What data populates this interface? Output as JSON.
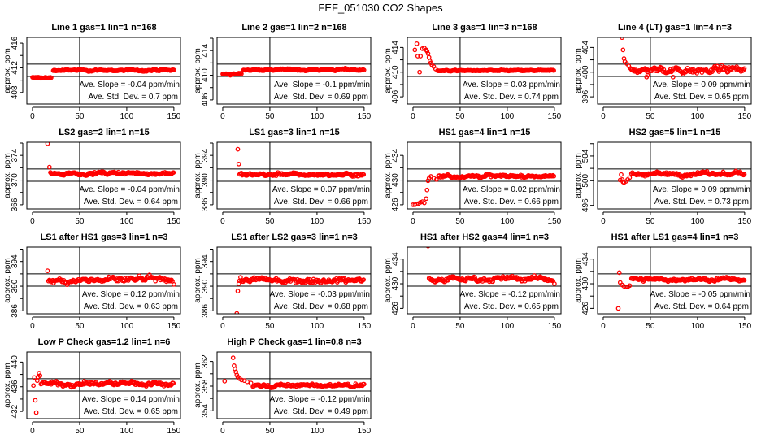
{
  "figure_title": "FEF_051030  CO2 Shapes",
  "colors": {
    "points": "#ff0000",
    "axes": "#000000"
  },
  "chart_data": {
    "type": "scatter",
    "ylabel": "approx. ppm",
    "xlim": [
      -6,
      157
    ],
    "x_ticks": [
      "0",
      "50",
      "100",
      "150"
    ],
    "vertical_reference_x": 50,
    "band_halfwidth_ppm": 1,
    "panels": [
      {
        "title": "Line 1 gas=1 lin=1 n=168",
        "slope": "Ave. Slope =  -0.04  ppm/min",
        "sd": "Ave. Std. Dev. =  0.7  ppm",
        "center": 411.6,
        "y_ticks": [
          408,
          410,
          412,
          414,
          416
        ],
        "y_labels": [
          "408",
          "412",
          "416"
        ],
        "transient": [],
        "steady": [
          {
            "from": 0,
            "to": 20,
            "level": 410.4,
            "noise": 0.12
          },
          {
            "from": 22,
            "to": 150,
            "level": 411.6,
            "noise": 0.12
          }
        ]
      },
      {
        "title": "Line 2 gas=1 lin=2 n=168",
        "slope": "Ave. Slope =  -0.1  ppm/min",
        "sd": "Ave. Std. Dev. =  0.69  ppm",
        "center": 410.8,
        "y_ticks": [
          406,
          408,
          410,
          412,
          414,
          416
        ],
        "y_labels": [
          "406",
          "410",
          "414"
        ],
        "transient": [],
        "steady": [
          {
            "from": 0,
            "to": 20,
            "level": 410.2,
            "noise": 0.12
          },
          {
            "from": 22,
            "to": 150,
            "level": 410.9,
            "noise": 0.12
          }
        ]
      },
      {
        "title": "Line 3 gas=1 lin=3 n=168",
        "slope": "Ave. Slope =  0.03  ppm/min",
        "sd": "Ave. Std. Dev. =  0.74  ppm",
        "center": 410.3,
        "y_ticks": [
          406,
          408,
          410,
          412,
          414
        ],
        "y_labels": [
          "406",
          "410",
          "414"
        ],
        "transient": [
          [
            2,
            413.6
          ],
          [
            4,
            414.6
          ],
          [
            5,
            412.6
          ],
          [
            7,
            410.0
          ],
          [
            8,
            412.6
          ],
          [
            10,
            413.8
          ],
          [
            12,
            413.9
          ],
          [
            14,
            413.6
          ],
          [
            15,
            413.4
          ],
          [
            16,
            413.0
          ],
          [
            17,
            412.4
          ],
          [
            18,
            411.8
          ],
          [
            19,
            411.5
          ],
          [
            20,
            411.2
          ],
          [
            22,
            410.9
          ],
          [
            24,
            410.5
          ]
        ],
        "steady": [
          {
            "from": 26,
            "to": 150,
            "level": 410.25,
            "noise": 0.08
          }
        ]
      },
      {
        "title": "Line 4 (LT) gas=1 lin=4 n=3",
        "slope": "Ave. Slope =  0.09  ppm/min",
        "sd": "Ave. Std. Dev. =  0.65  ppm",
        "center": 400.3,
        "y_ticks": [
          396,
          398,
          400,
          402,
          404
        ],
        "y_labels": [
          "396",
          "400",
          "404"
        ],
        "transient": [
          [
            20,
            405.6
          ],
          [
            21,
            403.6
          ],
          [
            22,
            402.2
          ],
          [
            23,
            401.7
          ],
          [
            25,
            401.4
          ],
          [
            27,
            401.0
          ],
          [
            29,
            400.6
          ],
          [
            46,
            399.2
          ],
          [
            47,
            399.5
          ],
          [
            74,
            399.2
          ]
        ],
        "steady": [
          {
            "from": 30,
            "to": 150,
            "level": 400.4,
            "noise": 0.45
          }
        ]
      },
      {
        "title": "LS2 gas=2 lin=1 n=15",
        "slope": "Ave. Slope =  -0.04  ppm/min",
        "sd": "Ave. Std. Dev. =  0.64  ppm",
        "center": 370.8,
        "y_ticks": [
          366,
          368,
          370,
          372,
          374,
          376
        ],
        "y_labels": [
          "366",
          "370",
          "374"
        ],
        "transient": [
          [
            16,
            375.9
          ],
          [
            18,
            372.1
          ]
        ],
        "steady": [
          {
            "from": 19,
            "to": 150,
            "level": 371.1,
            "noise": 0.2
          }
        ]
      },
      {
        "title": "LS1 gas=3 lin=1 n=15",
        "slope": "Ave. Slope =  0.07  ppm/min",
        "sd": "Ave. Std. Dev. =  0.66  ppm",
        "center": 390.8,
        "y_ticks": [
          386,
          388,
          390,
          392,
          394,
          396
        ],
        "y_labels": [
          "386",
          "390",
          "394"
        ],
        "transient": [
          [
            16,
            395.0
          ],
          [
            17,
            392.6
          ]
        ],
        "steady": [
          {
            "from": 18,
            "to": 150,
            "level": 390.9,
            "noise": 0.22
          }
        ]
      },
      {
        "title": "HS1 gas=4 lin=1 n=15",
        "slope": "Ave. Slope =  0.02  ppm/min",
        "sd": "Ave. Std. Dev. =  0.66  ppm",
        "center": 430.8,
        "y_ticks": [
          426,
          428,
          430,
          432,
          434
        ],
        "y_labels": [
          "426",
          "430",
          "434"
        ],
        "transient": [
          [
            0,
            426.0
          ],
          [
            2,
            426.0
          ],
          [
            4,
            426.1
          ],
          [
            6,
            426.2
          ],
          [
            8,
            426.4
          ],
          [
            10,
            426.5
          ],
          [
            12,
            426.3
          ],
          [
            14,
            427.0
          ],
          [
            15,
            428.4
          ],
          [
            16,
            429.9
          ],
          [
            17,
            430.3
          ],
          [
            19,
            430.6
          ],
          [
            22,
            430.3
          ],
          [
            25,
            430.1
          ]
        ],
        "steady": [
          {
            "from": 27,
            "to": 150,
            "level": 430.65,
            "noise": 0.2
          }
        ]
      },
      {
        "title": "HS2 gas=5 lin=1 n=15",
        "slope": "Ave. Slope =  0.09  ppm/min",
        "sd": "Ave. Std. Dev. =  0.73  ppm",
        "center": 500.9,
        "y_ticks": [
          496,
          498,
          500,
          502,
          504,
          506
        ],
        "y_labels": [
          "496",
          "500",
          "504"
        ],
        "transient": [
          [
            18,
            500.1
          ],
          [
            19,
            501.0
          ],
          [
            20,
            500.2
          ],
          [
            21,
            499.8
          ],
          [
            22,
            499.7
          ],
          [
            24,
            499.9
          ],
          [
            26,
            500.2
          ],
          [
            28,
            500.5
          ]
        ],
        "steady": [
          {
            "from": 30,
            "to": 150,
            "level": 501.1,
            "noise": 0.25
          }
        ]
      },
      {
        "title": "LS1 after HS1 gas=3 lin=1 n=3",
        "slope": "Ave. Slope =  0.12  ppm/min",
        "sd": "Ave. Std. Dev. =  0.63  ppm",
        "center": 391.0,
        "y_ticks": [
          386,
          388,
          390,
          392,
          394,
          396
        ],
        "y_labels": [
          "386",
          "390",
          "394"
        ],
        "transient": [
          [
            16,
            392.5
          ],
          [
            150,
            390.3
          ]
        ],
        "steady": [
          {
            "from": 17,
            "to": 149,
            "level": 391.0,
            "noise": 0.35
          }
        ]
      },
      {
        "title": "LS1 after LS2 gas=3 lin=1 n=3",
        "slope": "Ave. Slope =  -0.03  ppm/min",
        "sd": "Ave. Std. Dev. =  0.68  ppm",
        "center": 391.0,
        "y_ticks": [
          386,
          388,
          390,
          392,
          394,
          396
        ],
        "y_labels": [
          "386",
          "390",
          "394"
        ],
        "transient": [
          [
            15,
            385.6
          ],
          [
            16,
            389.2
          ],
          [
            17,
            390.4
          ]
        ],
        "steady": [
          {
            "from": 18,
            "to": 150,
            "level": 391.0,
            "noise": 0.35
          }
        ]
      },
      {
        "title": "HS1 after HS2 gas=4 lin=1 n=3",
        "slope": "Ave. Slope =  -0.12  ppm/min",
        "sd": "Ave. Std. Dev. =  0.65  ppm",
        "center": 430.6,
        "y_ticks": [
          426,
          428,
          430,
          432,
          434
        ],
        "y_labels": [
          "426",
          "430",
          "434"
        ],
        "transient": [
          [
            16,
            436.1
          ],
          [
            17,
            430.9
          ],
          [
            150,
            430.0
          ]
        ],
        "steady": [
          {
            "from": 18,
            "to": 149,
            "level": 430.8,
            "noise": 0.3
          }
        ]
      },
      {
        "title": "HS1 after LS1 gas=4 lin=1 n=3",
        "slope": "Ave. Slope =  -0.05  ppm/min",
        "sd": "Ave. Std. Dev. =  0.64  ppm",
        "center": 430.6,
        "y_ticks": [
          426,
          428,
          430,
          432,
          434
        ],
        "y_labels": [
          "426",
          "430",
          "434"
        ],
        "transient": [
          [
            16,
            426.0
          ],
          [
            17,
            431.8
          ],
          [
            18,
            430.2
          ],
          [
            20,
            429.8
          ],
          [
            22,
            429.6
          ],
          [
            24,
            429.5
          ],
          [
            26,
            429.5
          ],
          [
            28,
            429.7
          ]
        ],
        "steady": [
          {
            "from": 30,
            "to": 150,
            "level": 430.7,
            "noise": 0.25
          }
        ]
      },
      {
        "title": "Low P Check gas=1.2 lin=1 n=6",
        "slope": "Ave. Slope =  0.14  ppm/min",
        "sd": "Ave. Std. Dev. =  0.65  ppm",
        "center": 436.3,
        "y_ticks": [
          432,
          434,
          436,
          438,
          440
        ],
        "y_labels": [
          "432",
          "436",
          "440"
        ],
        "transient": [
          [
            1,
            436.2
          ],
          [
            2,
            437.5
          ],
          [
            3,
            433.8
          ],
          [
            4,
            431.8
          ],
          [
            5,
            437.0
          ],
          [
            6,
            437.6
          ],
          [
            7,
            438.2
          ],
          [
            8,
            437.8
          ]
        ],
        "steady": [
          {
            "from": 9,
            "to": 150,
            "level": 436.5,
            "noise": 0.3
          }
        ]
      },
      {
        "title": "High P Check gas=1 lin=0.8 n=3",
        "slope": "Ave. Slope =  -0.12  ppm/min",
        "sd": "Ave. Std. Dev. =  0.49  ppm",
        "center": 358.2,
        "y_ticks": [
          354,
          356,
          358,
          360,
          362
        ],
        "y_labels": [
          "354",
          "358",
          "362"
        ],
        "transient": [
          [
            2,
            358.8
          ],
          [
            11,
            362.6
          ],
          [
            12,
            361.3
          ],
          [
            13,
            360.8
          ],
          [
            14,
            360.3
          ],
          [
            15,
            359.8
          ],
          [
            16,
            359.5
          ],
          [
            18,
            359.2
          ],
          [
            20,
            359.0
          ],
          [
            23,
            358.9
          ],
          [
            26,
            358.7
          ],
          [
            30,
            358.5
          ]
        ],
        "steady": [
          {
            "from": 32,
            "to": 150,
            "level": 358.1,
            "noise": 0.25
          }
        ]
      }
    ]
  }
}
